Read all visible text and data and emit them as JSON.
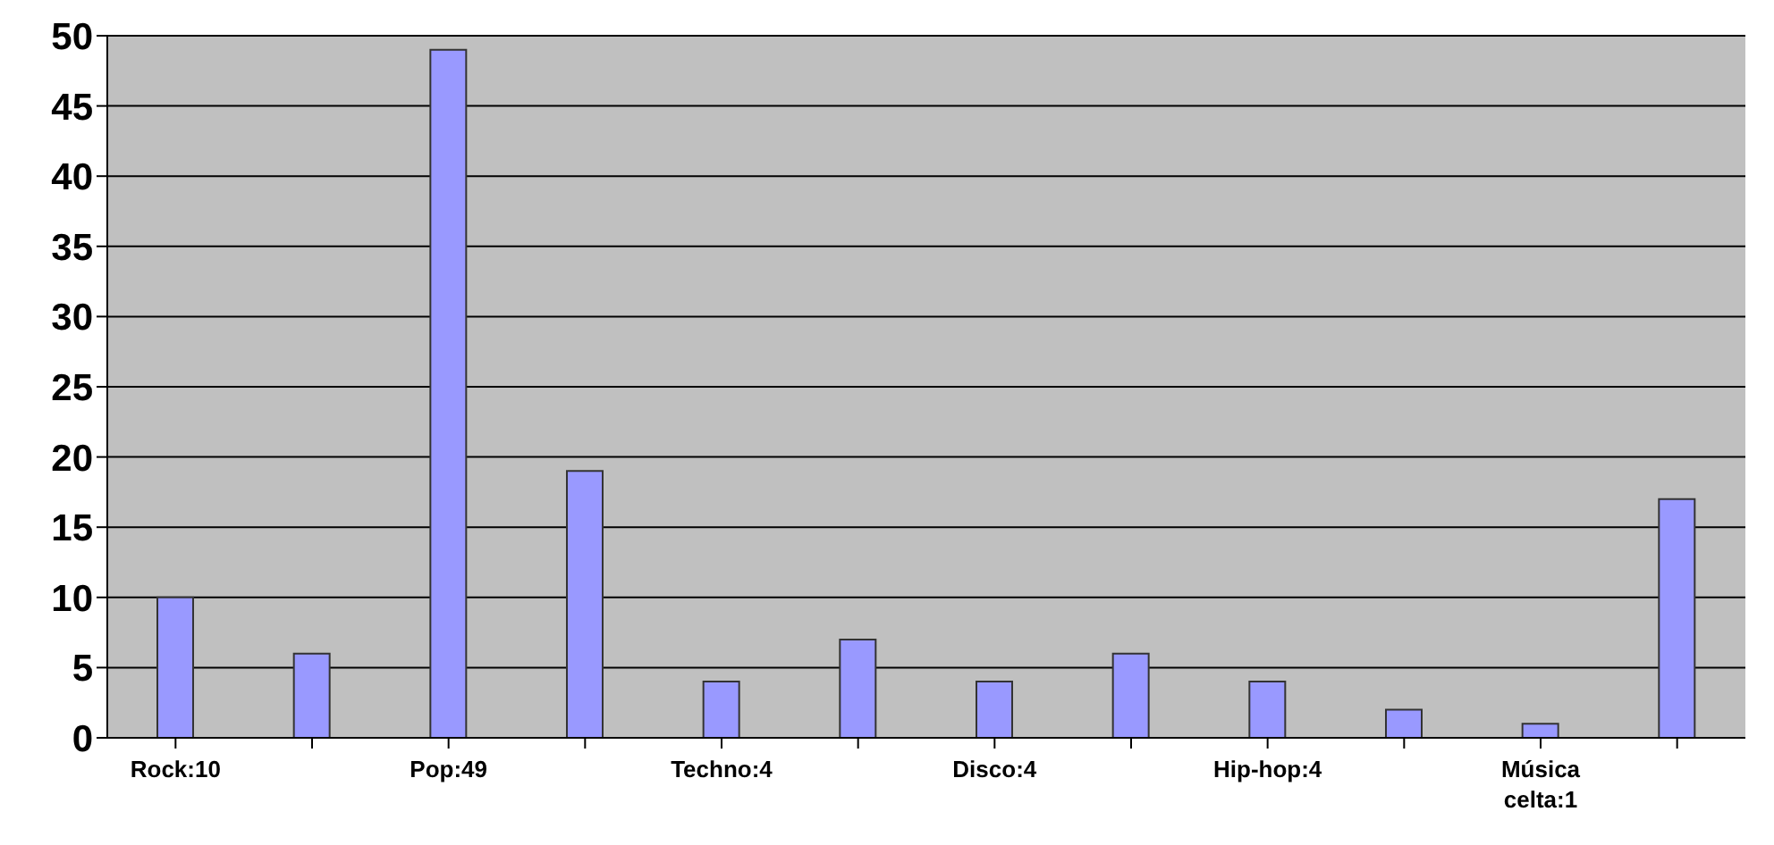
{
  "chart_data": {
    "type": "bar",
    "categories": [
      "Rock:10",
      null,
      "Pop:49",
      null,
      "Techno:4",
      null,
      "Disco:4",
      null,
      "Hip-hop:4",
      null,
      "Música celta:1",
      null
    ],
    "values": [
      10,
      6,
      49,
      19,
      4,
      7,
      4,
      6,
      4,
      2,
      1,
      17
    ],
    "color": "#9999ff",
    "ylim": [
      0,
      50
    ],
    "yticks": [
      0,
      5,
      10,
      15,
      20,
      25,
      30,
      35,
      40,
      45,
      50
    ],
    "grid": "y"
  }
}
